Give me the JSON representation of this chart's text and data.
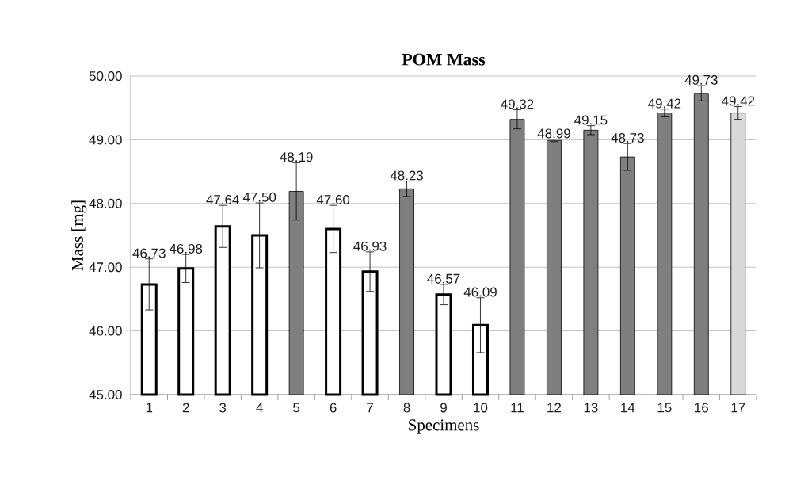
{
  "chart_data": {
    "type": "bar",
    "title": "POM Mass",
    "xlabel": "Specimens",
    "ylabel": "Mass [mg]",
    "categories": [
      "1",
      "2",
      "3",
      "4",
      "5",
      "6",
      "7",
      "8",
      "9",
      "10",
      "11",
      "12",
      "13",
      "14",
      "15",
      "16",
      "17"
    ],
    "values": [
      46.73,
      46.98,
      47.64,
      47.5,
      48.19,
      47.6,
      46.93,
      48.23,
      46.57,
      46.09,
      49.32,
      48.99,
      49.15,
      48.73,
      49.42,
      49.73,
      49.42
    ],
    "errors": [
      0.4,
      0.22,
      0.33,
      0.51,
      0.45,
      0.37,
      0.31,
      0.12,
      0.16,
      0.43,
      0.15,
      0.02,
      0.07,
      0.21,
      0.06,
      0.12,
      0.1
    ],
    "value_labels": [
      "46.73",
      "46.98",
      "47.64",
      "47.50",
      "48.19",
      "47.60",
      "46.93",
      "48.23",
      "46.57",
      "46.09",
      "49.32",
      "48.99",
      "49.15",
      "48.73",
      "49.42",
      "49.73",
      "49.42"
    ],
    "colors": [
      "#ffffff",
      "#ffffff",
      "#ffffff",
      "#ffffff",
      "#7f7f7f",
      "#ffffff",
      "#ffffff",
      "#7f7f7f",
      "#ffffff",
      "#ffffff",
      "#7f7f7f",
      "#7f7f7f",
      "#7f7f7f",
      "#7f7f7f",
      "#7f7f7f",
      "#7f7f7f",
      "#d9d9d9"
    ],
    "ylim": [
      45,
      50
    ],
    "yticks": [
      {
        "value": 45,
        "label": "45.00"
      },
      {
        "value": 46,
        "label": "46.00"
      },
      {
        "value": 47,
        "label": "47.00"
      },
      {
        "value": 48,
        "label": "48.00"
      },
      {
        "value": 49,
        "label": "49.00"
      },
      {
        "value": 50,
        "label": "50.00"
      }
    ],
    "grid": "y"
  }
}
